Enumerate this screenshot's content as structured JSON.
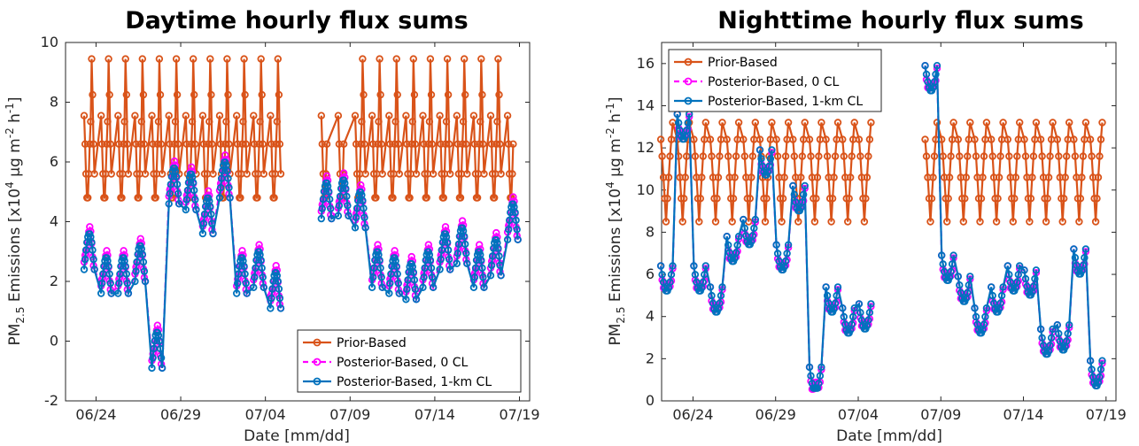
{
  "colors": {
    "prior": "#d95319",
    "post0": "#ff00ff",
    "post1km": "#0072bd"
  },
  "chart_data": [
    {
      "type": "line",
      "title": "Daytime hourly flux sums",
      "xlabel": "Date [mm/dd]",
      "ylabel": "PM2.5 Emissions [x10^4 µg m^-2 h^-1]",
      "xlim": [
        "06/22",
        "06/19"
      ],
      "xticks": [
        "06/24",
        "06/29",
        "07/04",
        "07/09",
        "07/14",
        "07/19"
      ],
      "yticks": [
        "-2",
        "0",
        "2",
        "4",
        "6",
        "8",
        "10"
      ],
      "ylim": [
        -2,
        10
      ],
      "grid": false,
      "legend_position": "bottom-right",
      "series": [
        {
          "name": "Prior-Based",
          "color": "#d95319",
          "style": "solid-circle",
          "x": [
            22.5,
            22.6,
            22.7,
            22.8,
            22.9,
            23.0,
            23.1,
            23.2,
            23.3,
            23.4,
            23.5,
            23.6,
            23.7,
            23.8,
            23.9,
            24.0,
            24.1,
            24.2,
            24.3,
            24.4,
            24.5,
            24.6,
            24.7,
            24.8,
            24.9,
            25.0,
            25.1,
            25.2,
            25.3,
            25.4,
            25.5,
            25.6,
            25.7,
            25.8,
            25.9,
            26.0,
            26.1,
            26.2,
            26.3,
            26.4,
            26.5,
            26.6,
            26.7,
            26.8,
            26.9,
            27.0,
            27.1,
            27.2,
            27.3,
            27.4,
            27.5,
            27.6,
            27.7,
            27.8,
            27.9,
            28.0,
            28.1,
            28.2,
            28.3,
            28.4,
            28.5,
            28.6,
            28.7,
            28.8,
            28.9,
            29.0,
            29.1,
            29.2,
            29.3,
            29.4,
            29.5,
            29.6,
            29.7,
            29.8,
            29.9,
            30.0,
            30.1,
            30.2,
            30.3,
            30.4,
            30.5,
            30.6,
            30.7,
            30.8,
            30.9,
            31.0,
            31.1,
            31.2,
            31.3,
            31.4,
            31.5,
            31.6,
            31.7,
            31.8,
            31.9,
            32.0,
            32.1,
            32.2,
            32.3,
            32.4,
            32.5,
            32.6,
            32.7,
            32.8,
            32.9,
            33.0,
            33.1,
            33.2,
            33.3,
            33.4,
            33.5,
            33.6,
            33.7,
            33.8
          ],
          "values": [
            7.55,
            6.6,
            5.6,
            4.8,
            5.6,
            9.45,
            8.25,
            6.6,
            5.6,
            4.8,
            4.8,
            5.6,
            6.6,
            7.35,
            9.45,
            8.25,
            6.6,
            5.6,
            4.8,
            4.8,
            5.6,
            6.6,
            7.35,
            9.45,
            8.25,
            6.6,
            5.6,
            4.8,
            4.8,
            5.6,
            6.6,
            7.35,
            9.45,
            8.25,
            6.6,
            5.6,
            4.8,
            4.8,
            5.6,
            6.6,
            7.35,
            9.45,
            8.25,
            6.6,
            5.6,
            4.8,
            4.8,
            5.6,
            6.6,
            7.35,
            9.45,
            8.25,
            6.6,
            5.6,
            4.8,
            4.8,
            5.6,
            6.6,
            7.35,
            9.45,
            8.25,
            6.6,
            5.6,
            4.8,
            4.8,
            5.6,
            6.6,
            7.35,
            9.45,
            8.25,
            6.6,
            5.6,
            4.8,
            4.8,
            5.6,
            6.6,
            7.35,
            9.45,
            8.25,
            6.6,
            5.6,
            4.8,
            4.8,
            5.6,
            6.6,
            7.35,
            9.45,
            8.25,
            6.6,
            5.6,
            4.8,
            4.8,
            5.6,
            6.6,
            7.35,
            9.45,
            8.25,
            6.6,
            5.6,
            4.8,
            4.8,
            5.6,
            6.6,
            7.35,
            9.45,
            8.25,
            6.6,
            5.6,
            4.8,
            4.8,
            5.6,
            6.6,
            7.35,
            9.45
          ]
        },
        {
          "name": "Posterior-Based, 0 CL",
          "color": "#ff00ff",
          "style": "dashed-circle",
          "values": [
            3.8,
            3.4,
            3.0,
            2.6,
            3.2,
            3.6,
            4.3,
            4.0,
            3.6,
            3.0,
            2.6,
            2.2,
            1.9,
            2.0,
            2.4,
            2.9,
            3.2,
            2.6,
            2.2,
            1.8,
            2.0,
            2.6,
            2.9,
            2.0,
            1.6,
            1.8,
            2.4,
            3.0,
            2.8,
            1.6,
            -0.5,
            -0.4,
            -0.5,
            -0.6,
            4.0,
            3.5,
            3.3,
            4.5,
            5.6,
            6.8,
            4.8,
            3.6,
            3.1,
            4.5,
            6.0,
            4.6,
            3.6,
            3.0,
            2.5,
            3.5,
            5.0,
            5.2,
            6.5,
            3.8,
            2.3,
            2.0,
            1.8,
            2.2,
            2.6,
            2.0,
            1.7,
            1.4,
            1.8,
            2.4,
            2.7,
            2.2,
            1.9,
            2.2,
            2.6,
            3.0,
            3.6,
            2.5,
            1.8,
            1.6,
            1.7,
            1.9,
            1.7,
            1.6,
            1.8,
            1.9,
            1.8,
            1.7,
            1.6,
            1.7,
            1.8,
            1.9,
            1.8,
            1.7,
            1.6,
            1.7,
            1.8,
            1.9,
            1.8,
            1.7,
            1.6,
            1.7,
            1.8,
            1.9,
            1.8,
            1.7,
            1.6,
            1.7,
            1.8,
            1.9,
            1.8,
            1.7,
            1.6,
            1.7,
            1.8,
            1.9,
            1.8,
            1.7,
            1.6,
            1.7
          ]
        },
        {
          "name": "Posterior-Based, 1-km CL",
          "color": "#0072bd",
          "style": "solid-circle",
          "values": [
            3.5,
            3.0,
            2.6,
            2.2,
            2.8,
            3.3,
            4.4,
            4.0,
            3.5,
            2.8,
            2.4,
            2.0,
            1.6,
            1.8,
            2.2,
            2.6,
            2.9,
            2.4,
            2.0,
            1.6,
            1.9,
            2.5,
            3.4,
            2.3,
            1.8,
            1.9,
            2.6,
            3.3,
            2.7,
            1.6,
            -0.5,
            -0.4,
            -0.5,
            -0.6,
            4.5,
            4.0,
            3.6,
            4.8,
            5.8,
            7.2,
            5.2,
            4.1,
            3.6,
            4.8,
            6.8,
            5.4,
            4.1,
            3.4,
            2.9,
            4.0,
            5.3,
            5.4,
            6.6,
            4.0,
            2.6,
            2.2,
            1.9,
            2.0,
            2.3,
            1.8,
            1.5,
            1.3,
            1.7,
            2.2,
            2.5,
            2.0,
            1.7,
            2.0,
            2.4,
            2.8,
            3.3,
            2.4,
            1.6,
            1.3,
            1.4,
            1.6,
            1.5,
            1.4,
            1.5,
            1.6,
            1.5,
            1.4,
            1.3,
            1.4,
            1.5,
            1.6,
            1.5,
            1.4,
            1.3,
            1.4,
            1.5,
            1.6,
            1.5,
            1.4,
            1.3,
            1.4,
            1.5,
            1.6,
            1.5,
            1.4,
            1.3,
            1.4,
            1.5,
            1.6,
            1.5,
            1.4,
            1.3,
            1.4,
            1.5,
            1.6,
            1.5,
            1.4,
            1.3,
            1.4
          ]
        }
      ]
    },
    {
      "type": "line",
      "title": "Nighttime hourly flux sums",
      "xlabel": "Date [mm/dd]",
      "ylabel": "PM2.5 Emissions [x10^4 µg m^-2 h^-1]",
      "xticks": [
        "06/24",
        "06/29",
        "07/04",
        "07/09",
        "07/14",
        "07/19"
      ],
      "yticks": [
        "0",
        "2",
        "4",
        "6",
        "8",
        "10",
        "12",
        "14",
        "16"
      ],
      "ylim": [
        0,
        17
      ],
      "grid": false,
      "legend_position": "top-left",
      "series": [
        {
          "name": "Prior-Based",
          "color": "#d95319",
          "style": "solid-circle"
        },
        {
          "name": "Posterior-Based, 0 CL",
          "color": "#ff00ff",
          "style": "dashed-circle"
        },
        {
          "name": "Posterior-Based, 1-km CL",
          "color": "#0072bd",
          "style": "solid-circle"
        }
      ]
    }
  ]
}
